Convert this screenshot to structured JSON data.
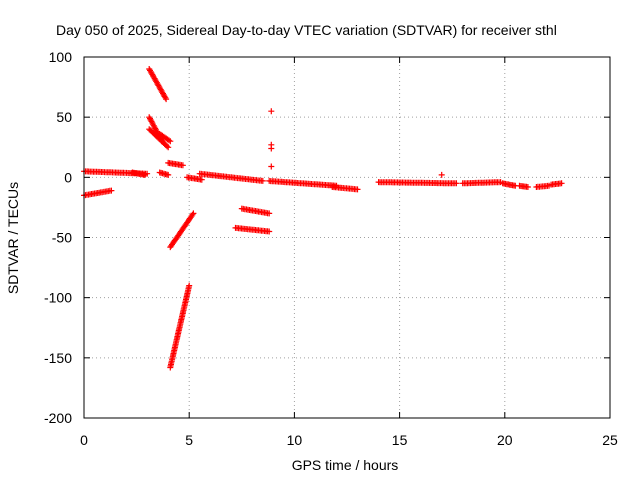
{
  "chart_data": {
    "type": "scatter",
    "title": "Day 050 of 2025, Sidereal Day-to-day VTEC variation (SDTVAR) for receiver sthl",
    "xlabel": "GPS time / hours",
    "ylabel": "SDTVAR / TECUs",
    "xlim": [
      0,
      25
    ],
    "ylim": [
      -200,
      100
    ],
    "x_ticks": [
      "0",
      "5",
      "10",
      "15",
      "20",
      "25"
    ],
    "y_ticks": [
      "100",
      "50",
      "0",
      "-50",
      "-100",
      "-150",
      "-200"
    ],
    "grid": true,
    "marker": "+",
    "color": "#ff0000",
    "segments": [
      {
        "x0": 0.0,
        "y0": 5,
        "x1": 3.0,
        "y1": 3
      },
      {
        "x0": 0.0,
        "y0": -15,
        "x1": 1.3,
        "y1": -11
      },
      {
        "x0": 2.3,
        "y0": 4,
        "x1": 2.9,
        "y1": 2
      },
      {
        "x0": 3.1,
        "y0": 90,
        "x1": 3.9,
        "y1": 65
      },
      {
        "x0": 3.1,
        "y0": 50,
        "x1": 3.7,
        "y1": 30
      },
      {
        "x0": 3.1,
        "y0": 40,
        "x1": 4.0,
        "y1": 25
      },
      {
        "x0": 3.6,
        "y0": 36,
        "x1": 4.1,
        "y1": 30
      },
      {
        "x0": 3.6,
        "y0": 4,
        "x1": 4.0,
        "y1": 2
      },
      {
        "x0": 4.0,
        "y0": 12,
        "x1": 4.7,
        "y1": 10
      },
      {
        "x0": 4.1,
        "y0": -58,
        "x1": 5.2,
        "y1": -30
      },
      {
        "x0": 4.1,
        "y0": -158,
        "x1": 5.0,
        "y1": -90
      },
      {
        "x0": 4.9,
        "y0": 0,
        "x1": 5.6,
        "y1": -2
      },
      {
        "x0": 5.5,
        "y0": 3,
        "x1": 8.5,
        "y1": -3
      },
      {
        "x0": 7.5,
        "y0": -26,
        "x1": 8.8,
        "y1": -30
      },
      {
        "x0": 7.2,
        "y0": -42,
        "x1": 8.8,
        "y1": -45
      },
      {
        "x0": 8.8,
        "y0": -3,
        "x1": 12.0,
        "y1": -7
      },
      {
        "x0": 11.8,
        "y0": -8,
        "x1": 13.0,
        "y1": -10
      },
      {
        "x0": 14.0,
        "y0": -4,
        "x1": 17.7,
        "y1": -5
      },
      {
        "x0": 18.0,
        "y0": -5,
        "x1": 19.8,
        "y1": -4
      },
      {
        "x0": 19.9,
        "y0": -5,
        "x1": 20.5,
        "y1": -7
      },
      {
        "x0": 20.7,
        "y0": -7,
        "x1": 21.1,
        "y1": -8
      },
      {
        "x0": 21.5,
        "y0": -8,
        "x1": 22.1,
        "y1": -7
      },
      {
        "x0": 22.2,
        "y0": -6,
        "x1": 22.7,
        "y1": -5
      }
    ],
    "points": [
      {
        "x": 8.9,
        "y": 55
      },
      {
        "x": 8.9,
        "y": 27
      },
      {
        "x": 8.9,
        "y": 24
      },
      {
        "x": 8.9,
        "y": 9
      },
      {
        "x": 17.0,
        "y": 2
      }
    ]
  }
}
